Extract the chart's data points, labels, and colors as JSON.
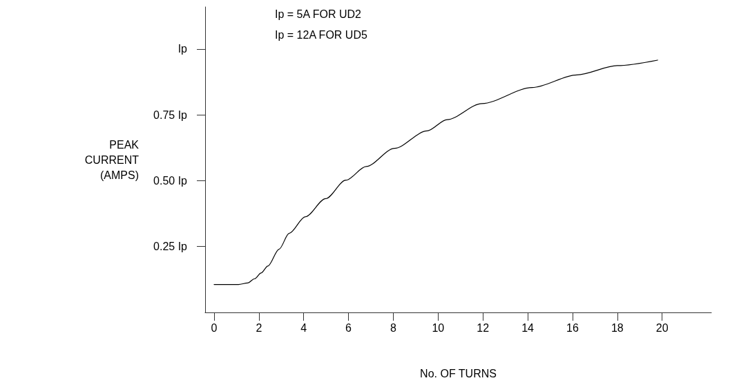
{
  "chart_data": {
    "type": "line",
    "xlabel": "No. OF TURNS",
    "ylabel": "PEAK\nCURRENT\n(AMPS)",
    "annotations": [
      "Ip = 5A FOR UD2",
      "Ip = 12A FOR UD5"
    ],
    "xlim": [
      -0.4,
      22.2
    ],
    "xticks": [
      0,
      2,
      4,
      6,
      8,
      10,
      12,
      14,
      16,
      18,
      20
    ],
    "ylim": [
      0,
      1.16
    ],
    "yticks": [
      {
        "value": 0.25,
        "label": "0.25 Ip"
      },
      {
        "value": 0.5,
        "label": "0.50 Ip"
      },
      {
        "value": 0.75,
        "label": "0.75 Ip"
      },
      {
        "value": 1,
        "label": "Ip"
      }
    ],
    "grid": false,
    "marker": "none",
    "line_style": "solid",
    "series": [
      {
        "color": "#000000",
        "x": [
          0,
          1.09,
          1.5,
          1.81,
          2.1,
          2.4,
          2.9,
          3.35,
          4.07,
          4.98,
          5.88,
          6.79,
          8.05,
          9.5,
          10.4,
          11.95,
          14.2,
          16.2,
          18.0,
          19.8
        ],
        "values": [
          0.106,
          0.106,
          0.112,
          0.128,
          0.15,
          0.176,
          0.24,
          0.3,
          0.363,
          0.432,
          0.502,
          0.554,
          0.623,
          0.689,
          0.732,
          0.793,
          0.854,
          0.902,
          0.937,
          0.958
        ]
      }
    ]
  }
}
